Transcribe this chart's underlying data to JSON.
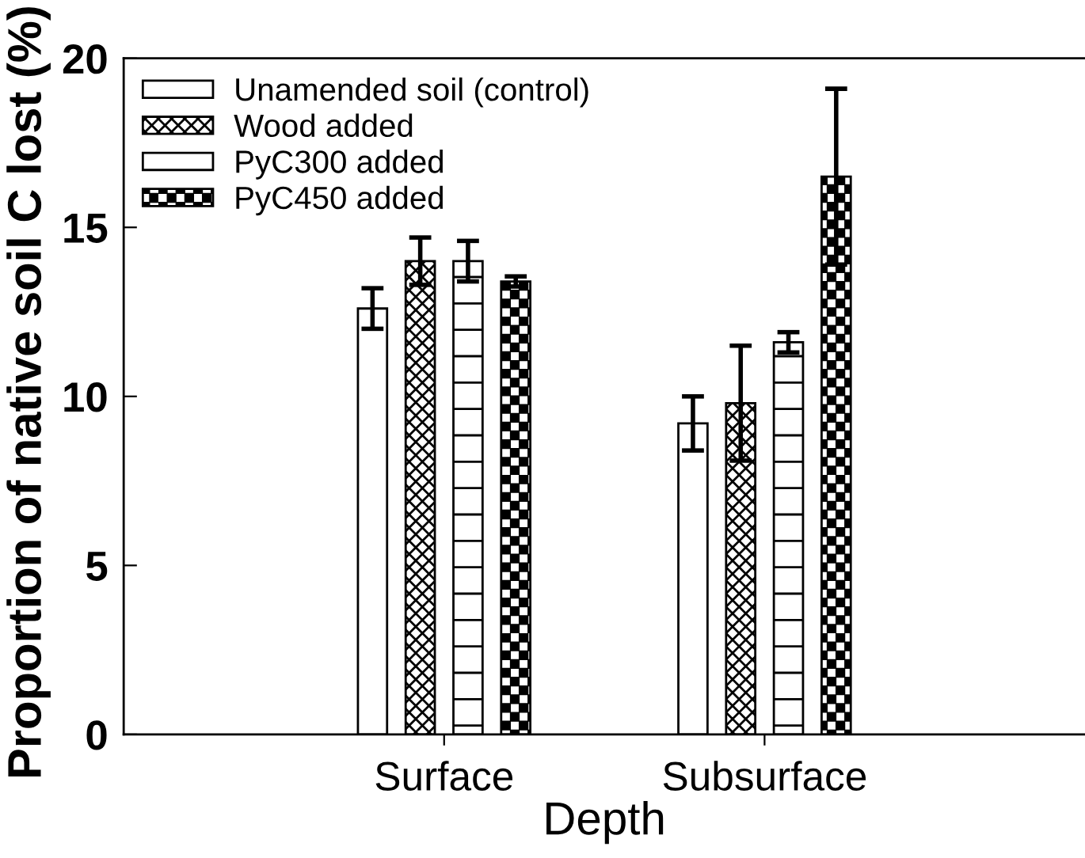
{
  "chart_data": {
    "type": "bar",
    "xlabel": "Depth",
    "ylabel": "Proportion of native soil C lost (%)",
    "categories": [
      "Surface",
      "Subsurface"
    ],
    "series": [
      {
        "name": "Unamended soil (control)",
        "color": "#ffffff",
        "values": [
          12.6,
          9.2
        ],
        "errors": [
          0.6,
          0.8
        ]
      },
      {
        "name": "Wood added",
        "color": "#000000",
        "values": [
          14.0,
          9.8
        ],
        "errors": [
          0.7,
          1.7
        ]
      },
      {
        "name": "PyC300 added",
        "color": "#000000",
        "values": [
          14.0,
          11.6
        ],
        "errors": [
          0.6,
          0.3
        ]
      },
      {
        "name": "PyC450 added",
        "color": "#000000",
        "values": [
          13.4,
          16.5
        ],
        "errors": [
          0.15,
          2.6
        ]
      }
    ],
    "ylim": [
      0,
      20
    ],
    "yticks": [
      0,
      5,
      10,
      15,
      20
    ],
    "legend": "top left"
  }
}
